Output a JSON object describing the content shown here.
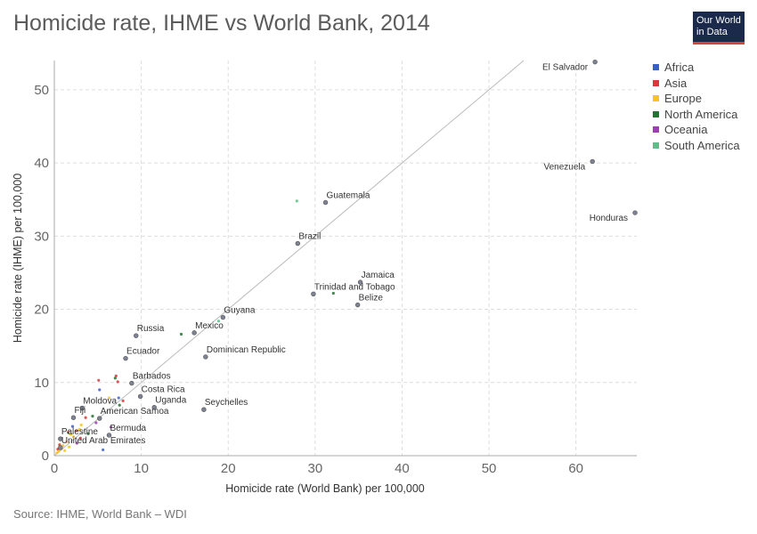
{
  "header": {
    "title": "Homicide rate, IHME vs World Bank, 2014"
  },
  "logo": {
    "line1": "Our World",
    "line2": "in Data"
  },
  "footer": {
    "source": "Source: IHME, World Bank – WDI"
  },
  "colors": {
    "Africa": "#3d5ec8",
    "Asia": "#d7393d",
    "Europe": "#f5c525",
    "North America": "#23742f",
    "Oceania": "#9b3fb3",
    "South America": "#5cbf8a",
    "labeled": "#7d8392"
  },
  "chart_data": {
    "type": "scatter",
    "title": "Homicide rate, IHME vs World Bank, 2014",
    "xlabel": "Homicide rate (World Bank) per 100,000",
    "ylabel": "Homicide rate (IHME) per 100,000",
    "xlim": [
      0,
      67
    ],
    "ylim": [
      0,
      54
    ],
    "x_ticks": [
      0,
      10,
      20,
      30,
      40,
      50,
      60
    ],
    "y_ticks": [
      0,
      10,
      20,
      30,
      40,
      50
    ],
    "grid": true,
    "legend_position": "top-right",
    "legend": [
      "Africa",
      "Asia",
      "Europe",
      "North America",
      "Oceania",
      "South America"
    ],
    "reference_line": "y = x",
    "labeled_points": [
      {
        "name": "El Salvador",
        "x": 62.2,
        "y": 53.8
      },
      {
        "name": "Venezuela",
        "x": 61.9,
        "y": 40.2
      },
      {
        "name": "Honduras",
        "x": 66.8,
        "y": 33.2
      },
      {
        "name": "Guatemala",
        "x": 31.2,
        "y": 34.6
      },
      {
        "name": "Brazil",
        "x": 28.0,
        "y": 29.0
      },
      {
        "name": "Jamaica",
        "x": 35.2,
        "y": 23.7
      },
      {
        "name": "Trinidad and Tobago",
        "x": 29.8,
        "y": 22.1
      },
      {
        "name": "Belize",
        "x": 34.9,
        "y": 20.6
      },
      {
        "name": "Guyana",
        "x": 19.4,
        "y": 18.9
      },
      {
        "name": "Mexico",
        "x": 16.1,
        "y": 16.8
      },
      {
        "name": "Russia",
        "x": 9.4,
        "y": 16.4
      },
      {
        "name": "Dominican Republic",
        "x": 17.4,
        "y": 13.5
      },
      {
        "name": "Ecuador",
        "x": 8.2,
        "y": 13.3
      },
      {
        "name": "Barbados",
        "x": 8.9,
        "y": 9.9
      },
      {
        "name": "Costa Rica",
        "x": 9.9,
        "y": 8.1
      },
      {
        "name": "Uganda",
        "x": 11.5,
        "y": 6.6
      },
      {
        "name": "Seychelles",
        "x": 17.2,
        "y": 6.3
      },
      {
        "name": "Moldova",
        "x": 3.2,
        "y": 6.5
      },
      {
        "name": "Fiji",
        "x": 2.2,
        "y": 5.2
      },
      {
        "name": "American Samoa",
        "x": 5.2,
        "y": 5.1
      },
      {
        "name": "Bermuda",
        "x": 6.3,
        "y": 2.8
      },
      {
        "name": "Palestine",
        "x": 0.7,
        "y": 2.3
      },
      {
        "name": "United Arab Emirates",
        "x": 0.7,
        "y": 1.1
      }
    ],
    "points": [
      {
        "region": "South America",
        "x": 27.9,
        "y": 34.8
      },
      {
        "region": "North America",
        "x": 32.1,
        "y": 22.2
      },
      {
        "region": "North America",
        "x": 14.6,
        "y": 16.6
      },
      {
        "region": "South America",
        "x": 18.9,
        "y": 18.4
      },
      {
        "region": "Africa",
        "x": 5.2,
        "y": 9.0
      },
      {
        "region": "Asia",
        "x": 5.1,
        "y": 10.3
      },
      {
        "region": "Asia",
        "x": 7.1,
        "y": 10.9
      },
      {
        "region": "Asia",
        "x": 7.3,
        "y": 10.1
      },
      {
        "region": "North America",
        "x": 7.0,
        "y": 10.6
      },
      {
        "region": "Africa",
        "x": 7.4,
        "y": 7.9
      },
      {
        "region": "Europe",
        "x": 6.3,
        "y": 7.9
      },
      {
        "region": "Asia",
        "x": 7.9,
        "y": 7.5
      },
      {
        "region": "North America",
        "x": 7.5,
        "y": 6.9
      },
      {
        "region": "North America",
        "x": 4.4,
        "y": 5.4
      },
      {
        "region": "Asia",
        "x": 3.6,
        "y": 5.2
      },
      {
        "region": "Oceania",
        "x": 4.8,
        "y": 4.5
      },
      {
        "region": "Europe",
        "x": 3.1,
        "y": 4.2
      },
      {
        "region": "Africa",
        "x": 5.6,
        "y": 0.8
      },
      {
        "region": "Asia",
        "x": 2.5,
        "y": 3.4
      },
      {
        "region": "Asia",
        "x": 3.0,
        "y": 2.4
      },
      {
        "region": "Oceania",
        "x": 2.6,
        "y": 1.7
      },
      {
        "region": "Europe",
        "x": 1.9,
        "y": 2.9
      },
      {
        "region": "Europe",
        "x": 1.4,
        "y": 1.9
      },
      {
        "region": "Europe",
        "x": 1.0,
        "y": 1.4
      },
      {
        "region": "Europe",
        "x": 0.8,
        "y": 0.9
      },
      {
        "region": "Europe",
        "x": 1.2,
        "y": 0.7
      },
      {
        "region": "Europe",
        "x": 0.5,
        "y": 0.6
      },
      {
        "region": "Asia",
        "x": 0.6,
        "y": 1.5
      },
      {
        "region": "Asia",
        "x": 0.4,
        "y": 0.9
      },
      {
        "region": "Europe",
        "x": 1.7,
        "y": 1.2
      },
      {
        "region": "Europe",
        "x": 0.3,
        "y": 0.4
      },
      {
        "region": "Africa",
        "x": 2.1,
        "y": 4.0
      },
      {
        "region": "Europe",
        "x": 2.9,
        "y": 3.6
      },
      {
        "region": "Asia",
        "x": 1.6,
        "y": 3.2
      },
      {
        "region": "Europe",
        "x": 2.2,
        "y": 2.6
      },
      {
        "region": "Oceania",
        "x": 6.5,
        "y": 3.9
      },
      {
        "region": "North America",
        "x": 3.9,
        "y": 3.0
      }
    ]
  }
}
